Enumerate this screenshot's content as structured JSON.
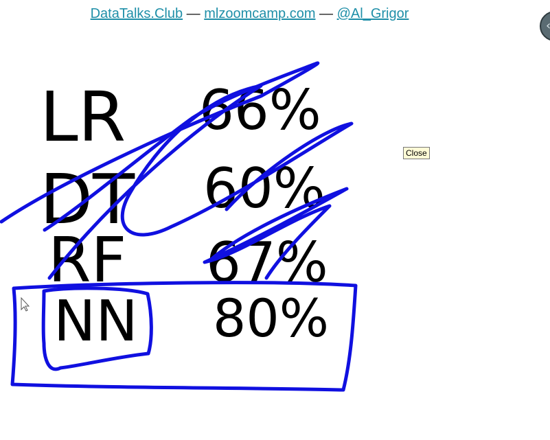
{
  "header": {
    "link1": "DataTalks.Club",
    "sep1": " — ",
    "link2": "mlzoomcamp.com",
    "sep2": " — ",
    "link3": "@Al_Grigor"
  },
  "tooltip": {
    "close_label": "Close"
  },
  "side_button": {
    "icon": "chevron-left-icon",
    "glyph": "‹"
  },
  "whiteboard": {
    "ink_color": "#000000",
    "highlight_color": "#1010e0",
    "rows": [
      {
        "model": "LR",
        "accuracy": "66%"
      },
      {
        "model": "DT",
        "accuracy": "60%"
      },
      {
        "model": "RF",
        "accuracy": "67%"
      },
      {
        "model": "NN",
        "accuracy": "80%"
      }
    ]
  }
}
